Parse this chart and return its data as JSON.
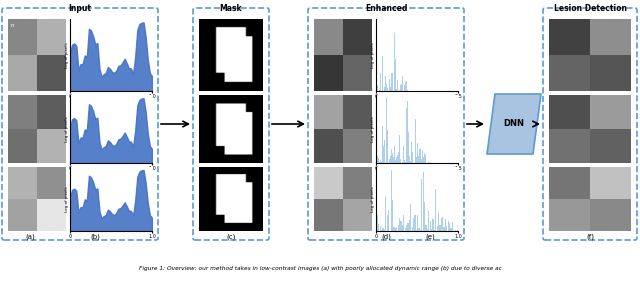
{
  "title": "Figure 1: Overview: our method takes in low-contrast images (a) with poorly allocated dynamic range (b) due to diverse ac",
  "section_labels": [
    "Input",
    "Mask",
    "Enhanced",
    "Lesion Detection"
  ],
  "sub_labels": [
    "(a)",
    "(b)",
    "(c)",
    "(d)",
    "(e)",
    "(f)"
  ],
  "arrow_color": "#333333",
  "dnn_box_color": "#a8c4e0",
  "panel_border_color": "#5b9bd5",
  "hist_blue": "#4472c4",
  "hist_light_blue": "#9dc3e6",
  "background": "#ffffff",
  "caption": "Figure 1: Overview: our method takes in low-contrast images (a) with poorly allocated dynamic range (b) due to diverse ac"
}
